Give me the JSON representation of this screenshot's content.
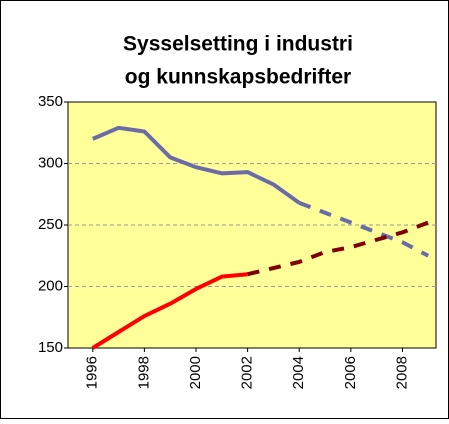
{
  "chart_data": {
    "type": "line",
    "title": [
      "Sysselsetting i industri",
      "og kunnskapsbedrifter"
    ],
    "x": [
      1996,
      1997,
      1998,
      1999,
      2000,
      2001,
      2002,
      2003,
      2004,
      2005,
      2006,
      2007,
      2008,
      2009
    ],
    "series": [
      {
        "color": "#6b6ba8",
        "dashed": false,
        "values": [
          320,
          329,
          326,
          305,
          297,
          292,
          293,
          283,
          268,
          null,
          null,
          null,
          null,
          null
        ]
      },
      {
        "color": "#6b6ba8",
        "dashed": true,
        "values": [
          null,
          null,
          null,
          null,
          null,
          null,
          null,
          null,
          268,
          260,
          252,
          244,
          236,
          225
        ]
      },
      {
        "color": "#ff0000",
        "dashed": false,
        "values": [
          150,
          163,
          176,
          186,
          198,
          208,
          210,
          null,
          null,
          null,
          null,
          null,
          null,
          null
        ]
      },
      {
        "color": "#800000",
        "dashed": true,
        "values": [
          null,
          null,
          null,
          null,
          null,
          null,
          210,
          215,
          220,
          228,
          232,
          238,
          244,
          252
        ]
      }
    ],
    "xlim": [
      1995.04,
      2009.3
    ],
    "xticks": [
      1996,
      1998,
      2000,
      2002,
      2004,
      2006,
      2008
    ],
    "ylim": [
      150,
      350
    ],
    "yticks": [
      150,
      200,
      250,
      300,
      350
    ],
    "grid": true,
    "plot_color": "#ffff99"
  }
}
